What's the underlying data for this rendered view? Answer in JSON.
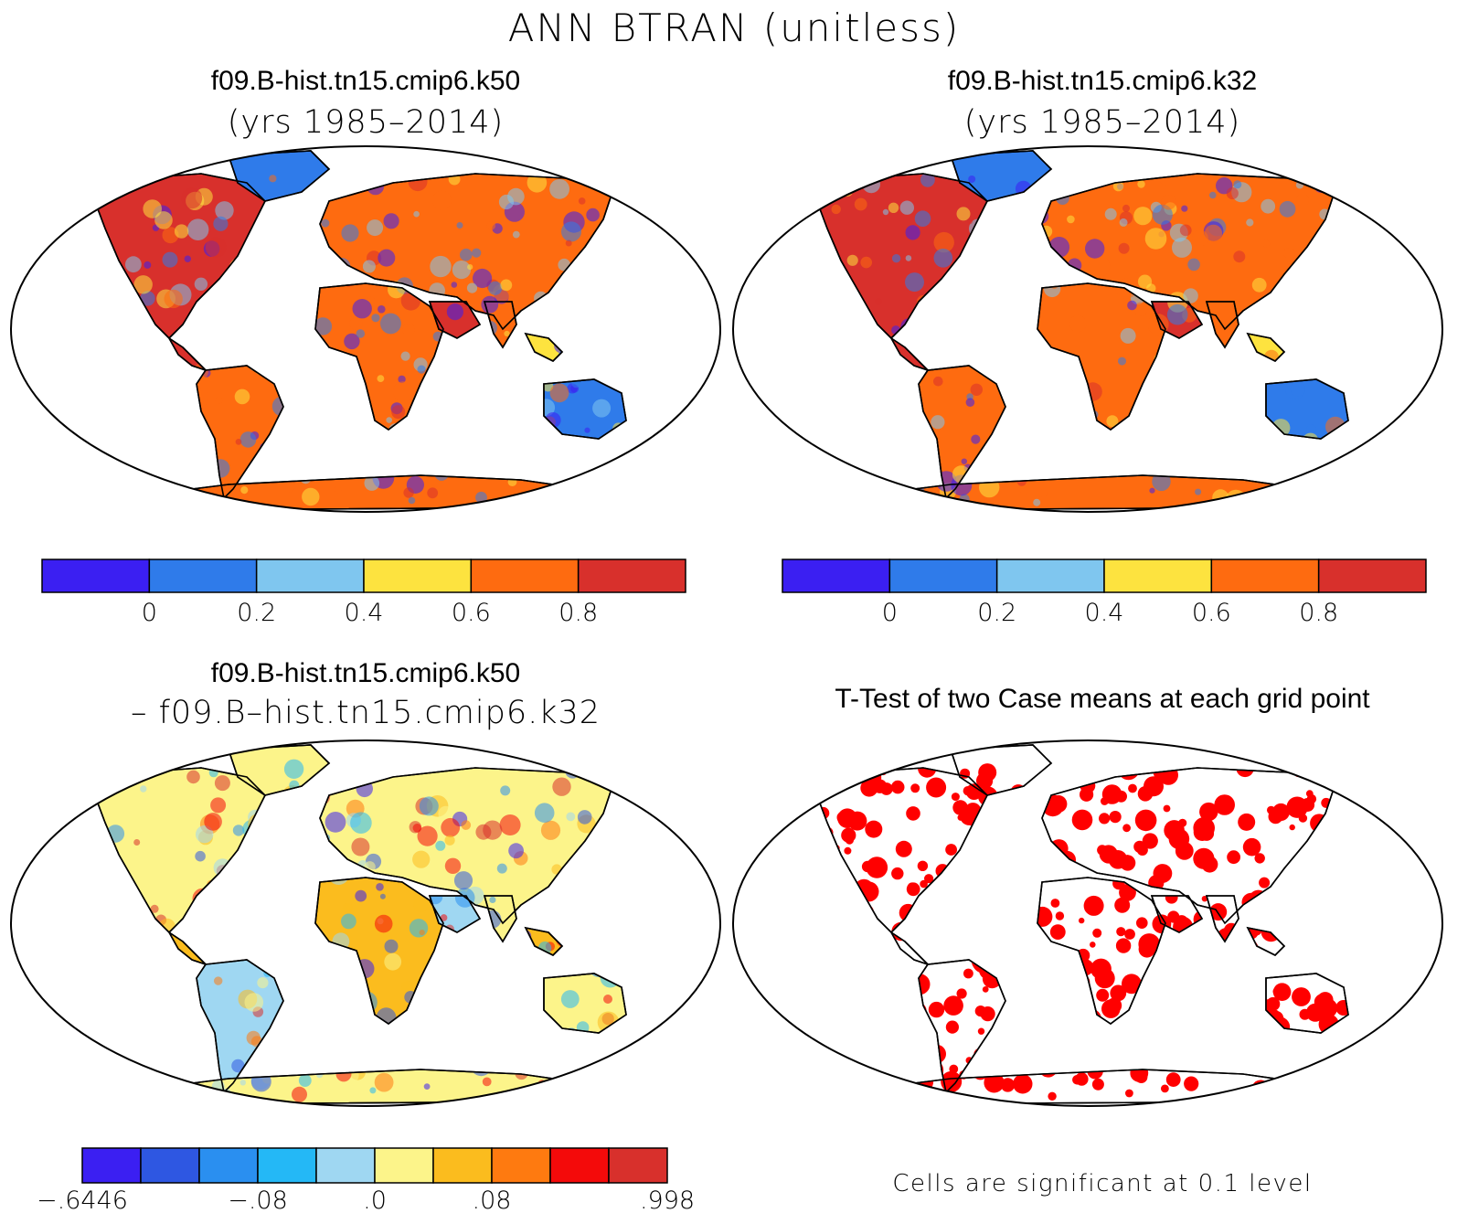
{
  "figure": {
    "title": "ANN BTRAN (unitless)"
  },
  "panels": [
    {
      "id": "case1",
      "title": "f09.B-hist.tn15.cmip6.k50",
      "subtitle": "(yrs 1985–2014)"
    },
    {
      "id": "case2",
      "title": "f09.B-hist.tn15.cmip6.k32",
      "subtitle": "(yrs 1985–2014)"
    },
    {
      "id": "diff",
      "title": "f09.B-hist.tn15.cmip6.k50",
      "subtitle": "– f09.B–hist.tn15.cmip6.k32"
    },
    {
      "id": "ttest",
      "title": "T-Test of two Case means at each grid point",
      "note": "Cells are significant at 0.1 level"
    }
  ],
  "colorbars": {
    "case1": {
      "colors": [
        "#3b1ff2",
        "#2f7bea",
        "#7fc6ef",
        "#fde33f",
        "#fe6b10",
        "#d8302c"
      ],
      "labels": [
        "0",
        "0.2",
        "0.4",
        "0.6",
        "0.8"
      ]
    },
    "case2": {
      "colors": [
        "#3b1ff2",
        "#2f7bea",
        "#7fc6ef",
        "#fde33f",
        "#fe6b10",
        "#d8302c"
      ],
      "labels": [
        "0",
        "0.2",
        "0.4",
        "0.6",
        "0.8"
      ]
    },
    "diff": {
      "colors": [
        "#3b1ff2",
        "#2e57e2",
        "#2a8ff0",
        "#24b8f6",
        "#9fd7f2",
        "#fcf48a",
        "#fbbc1e",
        "#fe7a10",
        "#f40a0a",
        "#d8302c"
      ],
      "labels": [
        "−.6446",
        "−.08",
        ".0",
        ".08",
        ".998"
      ]
    }
  },
  "significance_color": "#ff0000"
}
